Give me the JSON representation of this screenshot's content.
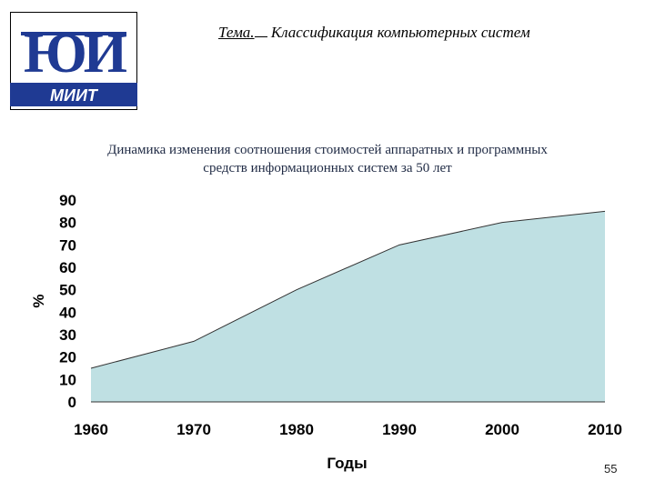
{
  "header": {
    "topic_label": "Тема.",
    "topic_text": "Классификация компьютерных систем"
  },
  "logo": {
    "monogram": "ЮИ",
    "wordmark": "МИИТ",
    "colors": {
      "blue": "#1f3a93",
      "border": "#000000"
    }
  },
  "slide": {
    "title_line1": "Динамика изменения соотношения стоимостей аппаратных и программных",
    "title_line2": "средств информационных систем за 50 лет",
    "page_number": "55"
  },
  "chart_data": {
    "type": "area",
    "x": [
      1960,
      1970,
      1980,
      1990,
      2000,
      2010
    ],
    "x_ticks": [
      "1960",
      "1970",
      "1980",
      "1990",
      "2000",
      "2010"
    ],
    "series": [
      {
        "values": [
          15,
          27,
          50,
          70,
          80,
          85
        ]
      }
    ],
    "y_ticks": [
      "0",
      "10",
      "20",
      "30",
      "40",
      "50",
      "60",
      "70",
      "80",
      "90"
    ],
    "ylim": [
      0,
      90
    ],
    "xlim": [
      1960,
      2010
    ],
    "xlabel": "Годы",
    "ylabel": "%",
    "fill_color": "#bfe0e3",
    "line_color": "#333333",
    "grid": false
  }
}
